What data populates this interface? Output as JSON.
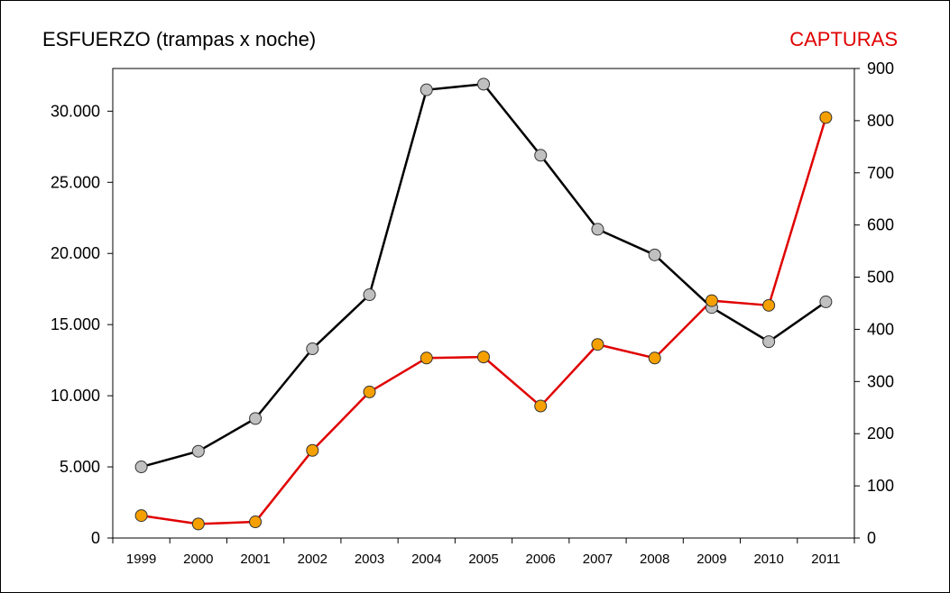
{
  "chart_data": {
    "type": "line",
    "left_axis_title": "ESFUERZO (trampas x noche)",
    "right_axis_title": "CAPTURAS",
    "categories": [
      "1999",
      "2000",
      "2001",
      "2002",
      "2003",
      "2004",
      "2005",
      "2006",
      "2007",
      "2008",
      "2009",
      "2010",
      "2011"
    ],
    "y_left": {
      "range": [
        0,
        33000
      ],
      "ticks": [
        0,
        5000,
        10000,
        15000,
        20000,
        25000,
        30000
      ],
      "tick_labels": [
        "0",
        "5.000",
        "10.000",
        "15.000",
        "20.000",
        "25.000",
        "30.000"
      ]
    },
    "y_right": {
      "range": [
        0,
        900
      ],
      "ticks": [
        0,
        100,
        200,
        300,
        400,
        500,
        600,
        700,
        800,
        900
      ],
      "tick_labels": [
        "0",
        "100",
        "200",
        "300",
        "400",
        "500",
        "600",
        "700",
        "800",
        "900"
      ]
    },
    "series": [
      {
        "axis": "left",
        "line_color": "#000000",
        "marker_color": "#c0c0c0",
        "values": [
          5000,
          6100,
          8400,
          13300,
          17100,
          31500,
          31900,
          26900,
          21700,
          19900,
          16200,
          13800,
          16600
        ]
      },
      {
        "axis": "right",
        "line_color": "#e00000",
        "marker_color": "#f5a000",
        "values": [
          43,
          27,
          31,
          168,
          280,
          345,
          347,
          253,
          371,
          345,
          455,
          446,
          806
        ]
      }
    ],
    "legend": "none",
    "grid": false
  },
  "colors": {
    "left_title": "#000000",
    "right_title": "#e00000"
  }
}
